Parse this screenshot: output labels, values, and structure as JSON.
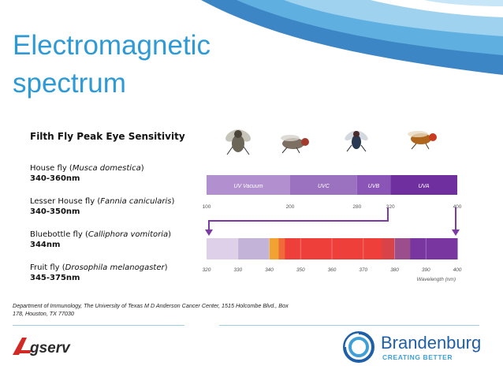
{
  "slide": {
    "title": "Electromagnetic spectrum",
    "heading": "Filth Fly Peak Eye Sensitivity",
    "source": "Department of Immunology, The University of Texas M D Anderson Cancer Center, 1515 Holcombe Blvd., Box 178, Houston, TX 77030",
    "colors": {
      "title": "#2d9ad6",
      "accent_dark": "#1f5fa8",
      "accent_light": "#9ecfe6"
    }
  },
  "flies": [
    {
      "prefix": "House fly (",
      "species": "Musca domestica",
      "suffix": ")",
      "range": "340-360nm"
    },
    {
      "prefix": "Lesser House fly (",
      "species": "Fannia canicularis",
      "suffix": ")",
      "range": "340-350nm"
    },
    {
      "prefix": "Bluebottle fly (",
      "species": "Calliphora vomitoria",
      "suffix": ")",
      "range": "344nm"
    },
    {
      "prefix": "Fruit fly (",
      "species": "Drosophila melanogaster",
      "suffix": ")",
      "range": "345-375nm"
    }
  ],
  "fly_images": [
    "house-fly-image",
    "lesser-house-fly-image",
    "bluebottle-fly-image",
    "fruit-fly-image"
  ],
  "chart": {
    "bands": [
      {
        "label": "UV Vacuum",
        "from": 100,
        "to": 200,
        "color": "#b28fce"
      },
      {
        "label": "UVC",
        "from": 200,
        "to": 280,
        "color": "#9b72c0"
      },
      {
        "label": "UVB",
        "from": 280,
        "to": 320,
        "color": "#8a55b6"
      },
      {
        "label": "UVA",
        "from": 320,
        "to": 400,
        "color": "#6f2f9e"
      }
    ],
    "top_ticks": [
      "100",
      "200",
      "280",
      "320",
      "400"
    ],
    "bottom_segments": [
      {
        "from": 320,
        "to": 330,
        "color": "#ddd0e8"
      },
      {
        "from": 330,
        "to": 340,
        "color": "#c4b3d9"
      },
      {
        "from": 340,
        "to": 343,
        "color": "#f1a332"
      },
      {
        "from": 343,
        "to": 345,
        "color": "#f16a3a"
      },
      {
        "from": 345,
        "to": 376,
        "color": "#ef3f3b"
      },
      {
        "from": 376,
        "to": 380,
        "color": "#d8434a"
      },
      {
        "from": 380,
        "to": 385,
        "color": "#9a4f8c"
      },
      {
        "from": 385,
        "to": 400,
        "color": "#7a36a0"
      }
    ],
    "bottom_ticks": [
      "320",
      "330",
      "340",
      "350",
      "360",
      "370",
      "380",
      "390",
      "400"
    ],
    "axis_label": "Wavelength (nm)"
  },
  "logos": {
    "agserv": "Agserv",
    "brandenburg": "Brandenburg",
    "brandenburg_tagline": "CREATING BETTER"
  }
}
